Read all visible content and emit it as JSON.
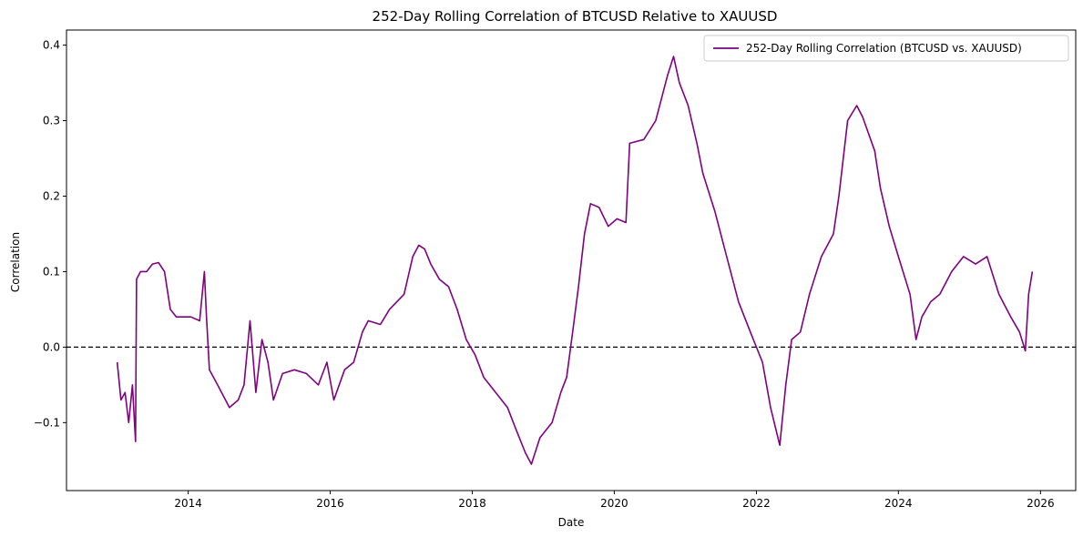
{
  "chart_data": {
    "type": "line",
    "title": "252-Day Rolling Correlation of BTCUSD Relative to XAUUSD",
    "xlabel": "Date",
    "ylabel": "Correlation",
    "xlim": [
      "2012-04-15",
      "2026-07-01"
    ],
    "ylim": [
      -0.19,
      0.42
    ],
    "xticks": [
      "2014",
      "2016",
      "2018",
      "2020",
      "2022",
      "2024",
      "2026"
    ],
    "yticks": [
      -0.1,
      0.0,
      0.1,
      0.2,
      0.3,
      0.4
    ],
    "ytick_labels": [
      "−0.1",
      "0.0",
      "0.1",
      "0.2",
      "0.3",
      "0.4"
    ],
    "reference_line": {
      "y": 0.0,
      "style": "dashed",
      "color": "#000000"
    },
    "legend": {
      "position": "top-right",
      "entries": [
        "252-Day Rolling Correlation (BTCUSD vs. XAUUSD)"
      ]
    },
    "series": [
      {
        "name": "252-Day Rolling Correlation (BTCUSD vs. XAUUSD)",
        "color": "#800080",
        "points": [
          [
            "2013-01-01",
            -0.02
          ],
          [
            "2013-01-20",
            -0.07
          ],
          [
            "2013-02-10",
            -0.06
          ],
          [
            "2013-03-01",
            -0.1
          ],
          [
            "2013-03-20",
            -0.05
          ],
          [
            "2013-04-05",
            -0.125
          ],
          [
            "2013-04-10",
            0.09
          ],
          [
            "2013-05-01",
            0.1
          ],
          [
            "2013-06-01",
            0.1
          ],
          [
            "2013-07-01",
            0.11
          ],
          [
            "2013-08-01",
            0.112
          ],
          [
            "2013-09-01",
            0.1
          ],
          [
            "2013-10-01",
            0.05
          ],
          [
            "2013-11-01",
            0.04
          ],
          [
            "2013-12-01",
            0.04
          ],
          [
            "2014-01-15",
            0.04
          ],
          [
            "2014-03-01",
            0.035
          ],
          [
            "2014-03-25",
            0.1
          ],
          [
            "2014-04-05",
            0.04
          ],
          [
            "2014-04-20",
            -0.03
          ],
          [
            "2014-06-01",
            -0.05
          ],
          [
            "2014-08-01",
            -0.08
          ],
          [
            "2014-09-15",
            -0.07
          ],
          [
            "2014-10-15",
            -0.05
          ],
          [
            "2014-11-15",
            0.035
          ],
          [
            "2014-12-15",
            -0.06
          ],
          [
            "2015-01-15",
            0.01
          ],
          [
            "2015-02-15",
            -0.02
          ],
          [
            "2015-03-15",
            -0.07
          ],
          [
            "2015-05-01",
            -0.035
          ],
          [
            "2015-07-01",
            -0.03
          ],
          [
            "2015-09-01",
            -0.035
          ],
          [
            "2015-11-01",
            -0.05
          ],
          [
            "2015-12-15",
            -0.02
          ],
          [
            "2016-01-20",
            -0.07
          ],
          [
            "2016-03-15",
            -0.03
          ],
          [
            "2016-05-01",
            -0.02
          ],
          [
            "2016-06-15",
            0.02
          ],
          [
            "2016-07-15",
            0.035
          ],
          [
            "2016-09-15",
            0.03
          ],
          [
            "2016-11-01",
            0.05
          ],
          [
            "2017-01-15",
            0.07
          ],
          [
            "2017-03-01",
            0.12
          ],
          [
            "2017-04-01",
            0.135
          ],
          [
            "2017-05-01",
            0.13
          ],
          [
            "2017-06-01",
            0.11
          ],
          [
            "2017-07-15",
            0.09
          ],
          [
            "2017-09-01",
            0.08
          ],
          [
            "2017-10-15",
            0.05
          ],
          [
            "2017-12-01",
            0.01
          ],
          [
            "2018-01-15",
            -0.01
          ],
          [
            "2018-03-01",
            -0.04
          ],
          [
            "2018-05-01",
            -0.06
          ],
          [
            "2018-07-01",
            -0.08
          ],
          [
            "2018-08-15",
            -0.11
          ],
          [
            "2018-10-01",
            -0.14
          ],
          [
            "2018-11-01",
            -0.155
          ],
          [
            "2018-12-15",
            -0.12
          ],
          [
            "2019-02-15",
            -0.1
          ],
          [
            "2019-04-01",
            -0.06
          ],
          [
            "2019-05-01",
            -0.04
          ],
          [
            "2019-06-01",
            0.02
          ],
          [
            "2019-07-01",
            0.08
          ],
          [
            "2019-08-01",
            0.15
          ],
          [
            "2019-09-01",
            0.19
          ],
          [
            "2019-10-15",
            0.185
          ],
          [
            "2019-12-01",
            0.16
          ],
          [
            "2020-01-15",
            0.17
          ],
          [
            "2020-03-01",
            0.165
          ],
          [
            "2020-03-20",
            0.27
          ],
          [
            "2020-06-01",
            0.275
          ],
          [
            "2020-08-01",
            0.3
          ],
          [
            "2020-10-01",
            0.36
          ],
          [
            "2020-11-01",
            0.385
          ],
          [
            "2020-12-01",
            0.35
          ],
          [
            "2021-01-15",
            0.32
          ],
          [
            "2021-03-01",
            0.27
          ],
          [
            "2021-04-01",
            0.23
          ],
          [
            "2021-06-01",
            0.18
          ],
          [
            "2021-08-01",
            0.12
          ],
          [
            "2021-10-01",
            0.06
          ],
          [
            "2021-12-01",
            0.02
          ],
          [
            "2022-02-01",
            -0.02
          ],
          [
            "2022-03-15",
            -0.08
          ],
          [
            "2022-05-01",
            -0.13
          ],
          [
            "2022-06-01",
            -0.05
          ],
          [
            "2022-07-01",
            0.01
          ],
          [
            "2022-08-15",
            0.02
          ],
          [
            "2022-10-01",
            0.07
          ],
          [
            "2022-12-01",
            0.12
          ],
          [
            "2023-02-01",
            0.15
          ],
          [
            "2023-03-01",
            0.2
          ],
          [
            "2023-04-15",
            0.3
          ],
          [
            "2023-06-01",
            0.32
          ],
          [
            "2023-07-01",
            0.305
          ],
          [
            "2023-09-01",
            0.26
          ],
          [
            "2023-10-01",
            0.21
          ],
          [
            "2023-11-15",
            0.16
          ],
          [
            "2024-01-01",
            0.12
          ],
          [
            "2024-03-01",
            0.07
          ],
          [
            "2024-04-01",
            0.01
          ],
          [
            "2024-05-01",
            0.04
          ],
          [
            "2024-06-15",
            0.06
          ],
          [
            "2024-08-01",
            0.07
          ],
          [
            "2024-10-01",
            0.1
          ],
          [
            "2024-12-01",
            0.12
          ],
          [
            "2025-02-01",
            0.11
          ],
          [
            "2025-04-01",
            0.12
          ],
          [
            "2025-06-01",
            0.07
          ],
          [
            "2025-08-01",
            0.04
          ],
          [
            "2025-09-15",
            0.02
          ],
          [
            "2025-10-15",
            -0.005
          ],
          [
            "2025-11-01",
            0.07
          ],
          [
            "2025-11-20",
            0.1
          ]
        ]
      }
    ]
  }
}
